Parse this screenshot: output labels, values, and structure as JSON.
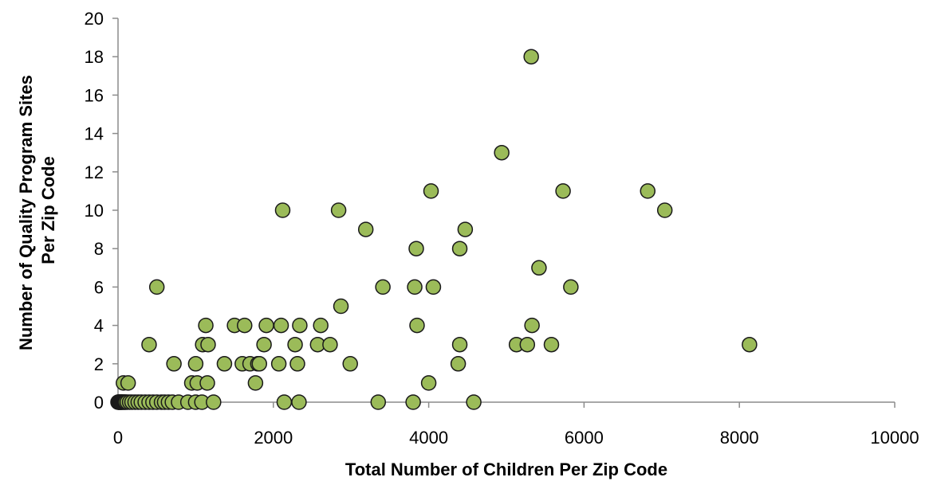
{
  "chart_data": {
    "type": "scatter",
    "xlabel": "Total Number of Children Per Zip Code",
    "ylabel_lines": [
      "Number of Quality Program Sites",
      "Per Zip Code"
    ],
    "xlim": [
      0,
      10000
    ],
    "ylim": [
      0,
      20
    ],
    "xticks": [
      0,
      2000,
      4000,
      6000,
      8000,
      10000
    ],
    "yticks": [
      0,
      2,
      4,
      6,
      8,
      10,
      12,
      14,
      16,
      18,
      20
    ],
    "grid": false,
    "legend": "none",
    "marker_fill": "#9bbb59",
    "marker_stroke": "#1a1a1a",
    "points": [
      [
        0,
        0
      ],
      [
        5,
        0
      ],
      [
        10,
        0
      ],
      [
        15,
        0
      ],
      [
        20,
        0
      ],
      [
        25,
        0
      ],
      [
        30,
        0
      ],
      [
        35,
        0
      ],
      [
        40,
        0
      ],
      [
        45,
        0
      ],
      [
        50,
        0
      ],
      [
        60,
        0
      ],
      [
        70,
        0
      ],
      [
        80,
        0
      ],
      [
        90,
        0
      ],
      [
        100,
        0
      ],
      [
        120,
        0
      ],
      [
        150,
        0
      ],
      [
        180,
        0
      ],
      [
        220,
        0
      ],
      [
        260,
        0
      ],
      [
        300,
        0
      ],
      [
        350,
        0
      ],
      [
        400,
        0
      ],
      [
        450,
        0
      ],
      [
        500,
        0
      ],
      [
        560,
        0
      ],
      [
        600,
        0
      ],
      [
        650,
        0
      ],
      [
        700,
        0
      ],
      [
        780,
        0
      ],
      [
        900,
        0
      ],
      [
        1000,
        0
      ],
      [
        1080,
        0
      ],
      [
        1230,
        0
      ],
      [
        2140,
        0
      ],
      [
        2330,
        0
      ],
      [
        3350,
        0
      ],
      [
        3800,
        0
      ],
      [
        4580,
        0
      ],
      [
        70,
        1
      ],
      [
        130,
        1
      ],
      [
        1770,
        1
      ],
      [
        4000,
        1
      ],
      [
        950,
        1
      ],
      [
        1020,
        1
      ],
      [
        1150,
        1
      ],
      [
        720,
        2
      ],
      [
        1000,
        2
      ],
      [
        1370,
        2
      ],
      [
        1600,
        2
      ],
      [
        1700,
        2
      ],
      [
        1800,
        2
      ],
      [
        1820,
        2
      ],
      [
        2070,
        2
      ],
      [
        2310,
        2
      ],
      [
        2990,
        2
      ],
      [
        4380,
        2
      ],
      [
        400,
        3
      ],
      [
        1090,
        3
      ],
      [
        1160,
        3
      ],
      [
        1880,
        3
      ],
      [
        2280,
        3
      ],
      [
        2570,
        3
      ],
      [
        2730,
        3
      ],
      [
        4400,
        3
      ],
      [
        5130,
        3
      ],
      [
        5270,
        3
      ],
      [
        5580,
        3
      ],
      [
        8130,
        3
      ],
      [
        1130,
        4
      ],
      [
        1500,
        4
      ],
      [
        1630,
        4
      ],
      [
        1910,
        4
      ],
      [
        2100,
        4
      ],
      [
        2340,
        4
      ],
      [
        2610,
        4
      ],
      [
        3850,
        4
      ],
      [
        5330,
        4
      ],
      [
        2870,
        5
      ],
      [
        500,
        6
      ],
      [
        3410,
        6
      ],
      [
        3820,
        6
      ],
      [
        4060,
        6
      ],
      [
        5830,
        6
      ],
      [
        5420,
        7
      ],
      [
        3840,
        8
      ],
      [
        4400,
        8
      ],
      [
        3190,
        9
      ],
      [
        4470,
        9
      ],
      [
        2120,
        10
      ],
      [
        2840,
        10
      ],
      [
        7040,
        10
      ],
      [
        4030,
        11
      ],
      [
        5730,
        11
      ],
      [
        6820,
        11
      ],
      [
        4940,
        13
      ],
      [
        5320,
        18
      ]
    ]
  }
}
